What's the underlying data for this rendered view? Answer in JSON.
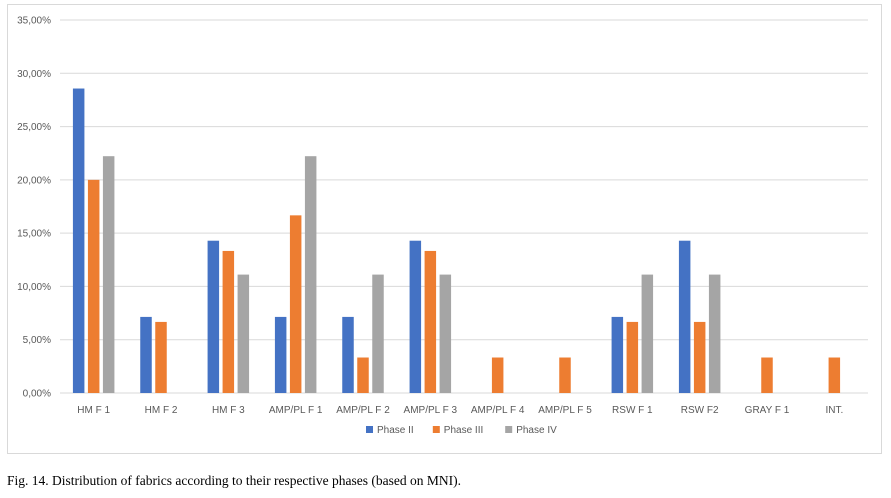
{
  "chart_data": {
    "type": "bar",
    "title": "",
    "xlabel": "",
    "ylabel": "",
    "categories": [
      "HM F 1",
      "HM F 2",
      "HM F 3",
      "AMP/PL F 1",
      "AMP/PL F 2",
      "AMP/PL F 3",
      "AMP/PL F 4",
      "AMP/PL F 5",
      "RSW F 1",
      "RSW F2",
      "GRAY F 1",
      "INT."
    ],
    "series": [
      {
        "name": "Phase II",
        "color": "#4472c4",
        "values": [
          28.57,
          7.14,
          14.29,
          7.14,
          7.14,
          14.29,
          0,
          0,
          7.14,
          14.29,
          0,
          0
        ]
      },
      {
        "name": "Phase III",
        "color": "#ed7d31",
        "values": [
          20.0,
          6.67,
          13.33,
          16.67,
          3.33,
          13.33,
          3.33,
          3.33,
          6.67,
          6.67,
          3.33,
          3.33
        ]
      },
      {
        "name": "Phase IV",
        "color": "#a5a5a5",
        "values": [
          22.22,
          0,
          11.11,
          22.22,
          11.11,
          11.11,
          0,
          0,
          11.11,
          11.11,
          0,
          0
        ]
      }
    ],
    "ylim": [
      0,
      35
    ],
    "yticks": [
      0,
      5,
      10,
      15,
      20,
      25,
      30,
      35
    ],
    "ytick_labels": [
      "0,00%",
      "5,00%",
      "10,00%",
      "15,00%",
      "20,00%",
      "25,00%",
      "30,00%",
      "35,00%"
    ],
    "grid": true,
    "legend_position": "bottom"
  },
  "caption": "Fig. 14. Distribution of fabrics according to their respective phases (based on MNI)."
}
